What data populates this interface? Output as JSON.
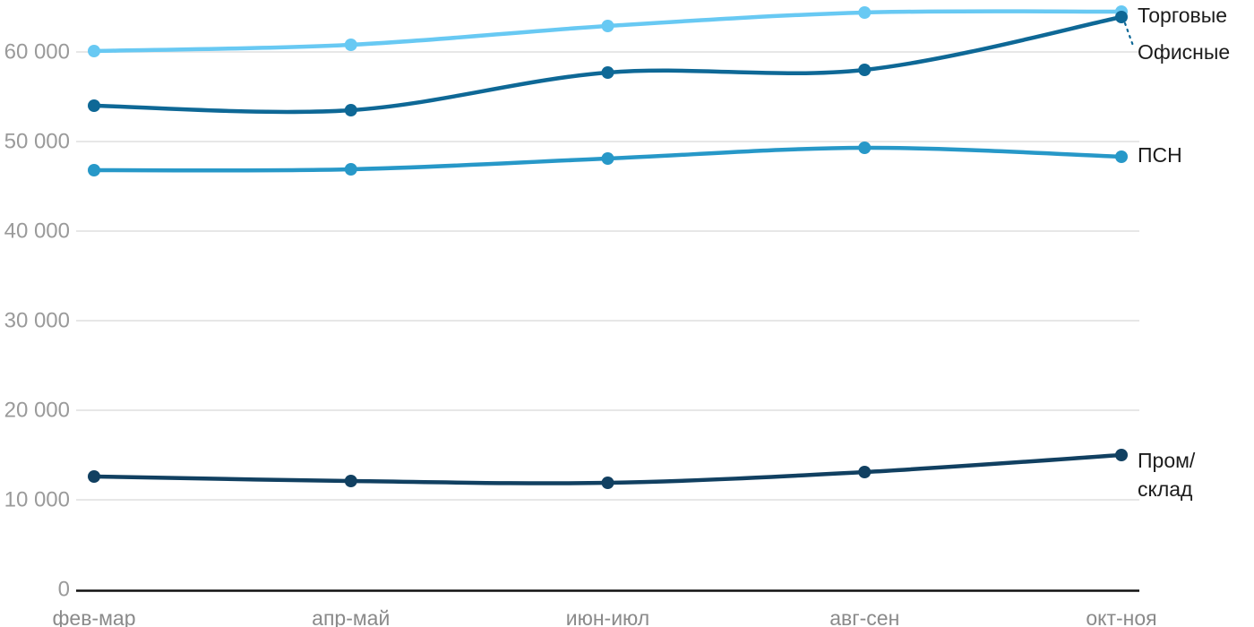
{
  "chart_data": {
    "type": "line",
    "title": "",
    "xlabel": "",
    "ylabel": "",
    "x_categories": [
      "фев-мар",
      "апр-май",
      "июн-июл",
      "авг-сен",
      "окт-ноя"
    ],
    "y_ticks": [
      0,
      10000,
      20000,
      30000,
      40000,
      50000,
      60000
    ],
    "y_tick_labels": [
      "0",
      "10 000",
      "20 000",
      "30 000",
      "40 000",
      "50 000",
      "60 000"
    ],
    "ylim": [
      0,
      65000
    ],
    "grid": true,
    "legend_position": "labels at right end of each line",
    "series": [
      {
        "id": "torgovye",
        "name": "Торговые",
        "color": "#68C9F3",
        "values": [
          60100,
          60800,
          62900,
          64400,
          64500
        ],
        "label_lines": [
          "Торговые"
        ],
        "label_y": [
          17
        ],
        "leader": false
      },
      {
        "id": "ofisnye",
        "name": "Офисные",
        "color": "#0E6896",
        "values": [
          54000,
          53500,
          57700,
          58000,
          63900
        ],
        "label_lines": [
          "Офисные"
        ],
        "label_y": [
          58
        ],
        "leader": true
      },
      {
        "id": "psn",
        "name": "ПСН",
        "color": "#2798C8",
        "values": [
          46800,
          46900,
          48100,
          49300,
          48300
        ],
        "label_lines": [
          "ПСН"
        ],
        "label_y": [
          173
        ],
        "leader": false
      },
      {
        "id": "prom-sklad",
        "name": "Пром/склад",
        "color": "#114061",
        "values": [
          12600,
          12100,
          11900,
          13100,
          15000
        ],
        "label_lines": [
          "Пром/",
          "склад"
        ],
        "label_y": [
          514,
          546
        ],
        "leader": false
      }
    ],
    "colors": {
      "axis": "#111111",
      "grid": "#e7e7e7",
      "y_tick_label": "#9a9a9a",
      "x_tick_label": "#8a8a8a",
      "series_label": "#1c1c1c"
    }
  }
}
